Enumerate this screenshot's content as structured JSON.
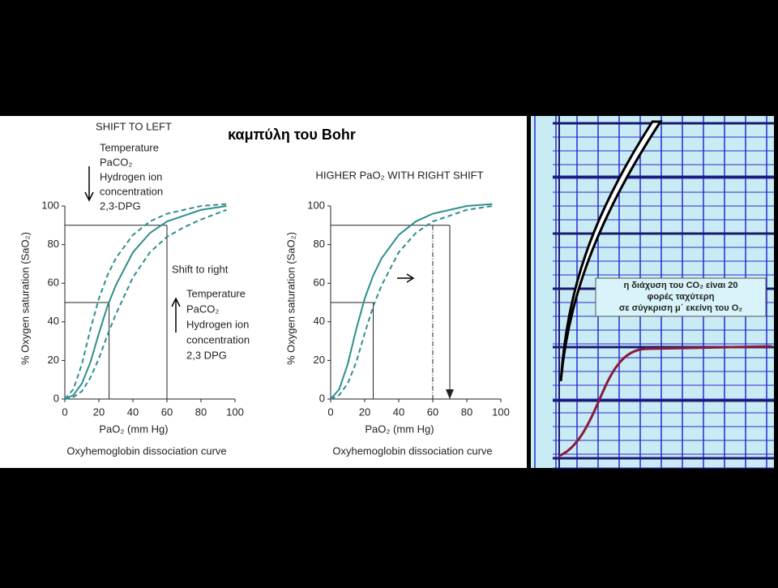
{
  "slide_title": "καμπύλη του Bohr",
  "note_lines": [
    "η διάχυση του CO₂ είναι 20",
    "φορές ταχύτερη",
    "σε σύγκριση μ΄ εκείνη του O₂"
  ],
  "chart_data": [
    {
      "type": "line",
      "title": "SHIFT TO LEFT",
      "annotations": [
        {
          "text": [
            "Temperature",
            "PaCO₂",
            "Hydrogen ion",
            "concentration",
            "2,3-DPG"
          ]
        },
        {
          "text": [
            "Shift to right",
            "Temperature",
            "PaCO₂",
            "Hydrogen ion",
            "concentration",
            "2,3 DPG"
          ]
        }
      ],
      "x_label": "PaO₂ (mm Hg)",
      "y_label": "% Oxygen saturation (SaO₂)",
      "caption": "Oxyhemoglobin dissociation curve",
      "x": [
        0,
        5,
        10,
        15,
        20,
        25,
        30,
        40,
        50,
        60,
        70,
        80,
        95
      ],
      "series": [
        {
          "color": "#2f8e8e",
          "dashed": false,
          "values": [
            0,
            2,
            8,
            19,
            34,
            48,
            59,
            76,
            86,
            92,
            95,
            98,
            100
          ]
        },
        {
          "color": "#2f8e8e",
          "dashed": true,
          "values": [
            0,
            5,
            18,
            36,
            52,
            64,
            73,
            85,
            92,
            96,
            98,
            100,
            101
          ]
        },
        {
          "color": "#2f8e8e",
          "dashed": true,
          "values": [
            0,
            1,
            4,
            11,
            21,
            33,
            44,
            63,
            76,
            84,
            89,
            93,
            98
          ]
        }
      ],
      "reference_lines": [
        {
          "x": 60,
          "y": 90
        },
        {
          "x": 26,
          "y": 50
        }
      ],
      "xlim": [
        0,
        100
      ],
      "ylim": [
        0,
        100
      ],
      "xticks": [
        0,
        20,
        40,
        60,
        80,
        100
      ],
      "yticks": [
        0,
        20,
        40,
        60,
        80,
        100
      ]
    },
    {
      "type": "line",
      "title": "HIGHER PaO₂ WITH RIGHT SHIFT",
      "x_label": "PaO₂ (mm Hg)",
      "y_label": "% Oxygen saturation (SaO₂)",
      "caption": "Oxyhemoglobin dissociation curve",
      "x": [
        0,
        5,
        10,
        15,
        20,
        25,
        30,
        40,
        50,
        60,
        70,
        80,
        95
      ],
      "series": [
        {
          "color": "#2f8e8e",
          "dashed": false,
          "values": [
            0,
            5,
            18,
            36,
            52,
            64,
            73,
            85,
            92,
            96,
            98,
            100,
            101
          ]
        },
        {
          "color": "#2f8e8e",
          "dashed": true,
          "values": [
            0,
            2,
            8,
            19,
            34,
            48,
            59,
            76,
            86,
            92,
            95,
            98,
            100
          ]
        }
      ],
      "reference_lines": [
        {
          "x": 70,
          "y": 90
        },
        {
          "x": 25,
          "y": 50
        }
      ],
      "marker_x": 60,
      "xlim": [
        0,
        100
      ],
      "ylim": [
        0,
        100
      ],
      "xticks": [
        0,
        20,
        40,
        60,
        80,
        100
      ],
      "yticks": [
        0,
        20,
        40,
        60,
        80,
        100
      ]
    }
  ]
}
